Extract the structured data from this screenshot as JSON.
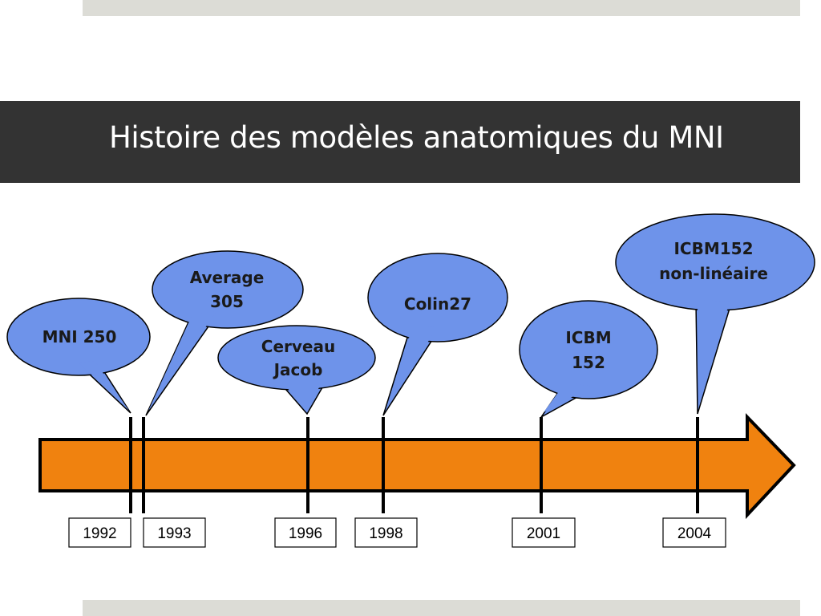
{
  "title": "Histoire des modèles anatomiques du MNI",
  "colors": {
    "title_bar": "#333333",
    "bands": "#dcdcd6",
    "bubble_fill": "#6e93ea",
    "arrow_fill": "#f0820f"
  },
  "events": [
    {
      "year": "1992",
      "label": [
        "MNI 250"
      ]
    },
    {
      "year": "1993",
      "label": [
        "Average",
        "305"
      ]
    },
    {
      "year": "1996",
      "label": [
        "Cerveau",
        "Jacob"
      ]
    },
    {
      "year": "1998",
      "label": [
        "Colin27"
      ]
    },
    {
      "year": "2001",
      "label": [
        "ICBM",
        "152"
      ]
    },
    {
      "year": "2004",
      "label": [
        "ICBM152",
        "non-linéaire"
      ]
    }
  ]
}
